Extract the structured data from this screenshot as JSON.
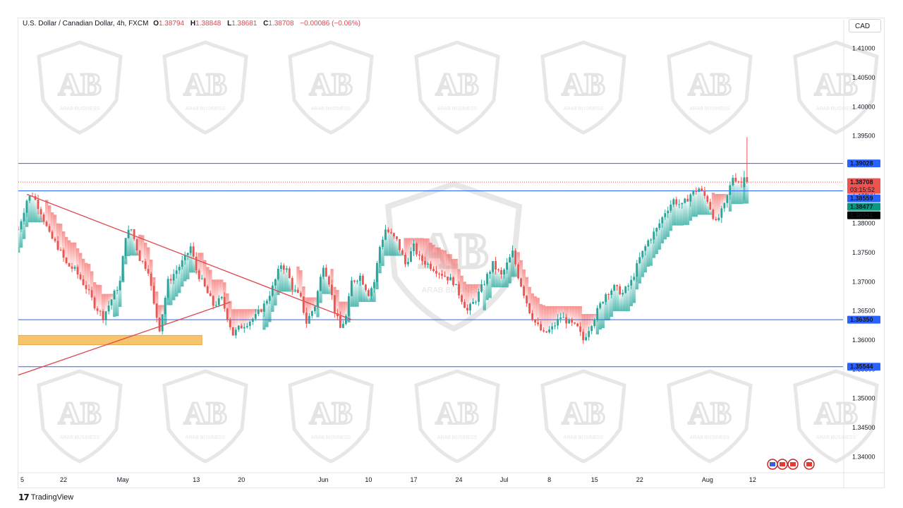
{
  "header": {
    "symbol": "U.S. Dollar / Canadian Dollar, 4h, FXCM",
    "open_label": "O",
    "open": "1.38794",
    "high_label": "H",
    "high": "1.38848",
    "low_label": "L",
    "low": "1.38681",
    "close_label": "C",
    "close": "1.38708",
    "change": "−0.00086 (−0.06%)"
  },
  "currency_button": "CAD",
  "footer": {
    "brand": "TradingView"
  },
  "watermark": {
    "text": "ARAB BUSINESS",
    "monogram": "AB"
  },
  "colors": {
    "bull": "#26a69a",
    "bear": "#ef5350",
    "hline": "#2962ff",
    "trendline": "#e0464e",
    "zone": "#f7c46c",
    "cloud_green": "#26a69a",
    "cloud_red": "#ef5350"
  },
  "chart_data": {
    "type": "candlestick",
    "instrument": "USDCAD",
    "timeframe": "4h",
    "ylim": [
      1.3375,
      1.4125
    ],
    "y_ticks": [
      1.34,
      1.345,
      1.35,
      1.355,
      1.36,
      1.365,
      1.37,
      1.375,
      1.38,
      1.385,
      1.39,
      1.395,
      1.4,
      1.405,
      1.41
    ],
    "y_tick_labels": [
      "1.34000",
      "1.34500",
      "1.35000",
      "1.35500",
      "1.36000",
      "1.36500",
      "1.37000",
      "1.37500",
      "1.38000",
      "1.38500",
      "1.39000",
      "1.39500",
      "1.40000",
      "1.40500",
      "1.41000"
    ],
    "x_ticks": [
      {
        "label": "5",
        "t": 0
      },
      {
        "label": "22",
        "t": 16
      },
      {
        "label": "May",
        "t": 37
      },
      {
        "label": "13",
        "t": 63
      },
      {
        "label": "20",
        "t": 79
      },
      {
        "label": "Jun",
        "t": 108
      },
      {
        "label": "10",
        "t": 124
      },
      {
        "label": "17",
        "t": 140
      },
      {
        "label": "24",
        "t": 156
      },
      {
        "label": "Jul",
        "t": 172
      },
      {
        "label": "8",
        "t": 188
      },
      {
        "label": "15",
        "t": 204
      },
      {
        "label": "22",
        "t": 220
      },
      {
        "label": "Aug",
        "t": 244
      },
      {
        "label": "12",
        "t": 260
      }
    ],
    "x_range": [
      0,
      292
    ],
    "price_anchors": [
      [
        0,
        1.379
      ],
      [
        3,
        1.384
      ],
      [
        5,
        1.385
      ],
      [
        8,
        1.382
      ],
      [
        11,
        1.378
      ],
      [
        14,
        1.376
      ],
      [
        17,
        1.373
      ],
      [
        20,
        1.372
      ],
      [
        24,
        1.369
      ],
      [
        27,
        1.366
      ],
      [
        30,
        1.364
      ],
      [
        33,
        1.367
      ],
      [
        36,
        1.37
      ],
      [
        38,
        1.378
      ],
      [
        40,
        1.379
      ],
      [
        43,
        1.374
      ],
      [
        46,
        1.372
      ],
      [
        48,
        1.366
      ],
      [
        50,
        1.362
      ],
      [
        53,
        1.37
      ],
      [
        56,
        1.372
      ],
      [
        59,
        1.374
      ],
      [
        61,
        1.376
      ],
      [
        63,
        1.372
      ],
      [
        66,
        1.369
      ],
      [
        69,
        1.366
      ],
      [
        72,
        1.367
      ],
      [
        74,
        1.364
      ],
      [
        76,
        1.361
      ],
      [
        78,
        1.362
      ],
      [
        81,
        1.363
      ],
      [
        84,
        1.364
      ],
      [
        87,
        1.366
      ],
      [
        90,
        1.369
      ],
      [
        93,
        1.373
      ],
      [
        95,
        1.372
      ],
      [
        97,
        1.369
      ],
      [
        100,
        1.367
      ],
      [
        102,
        1.363
      ],
      [
        105,
        1.366
      ],
      [
        108,
        1.373
      ],
      [
        110,
        1.37
      ],
      [
        112,
        1.365
      ],
      [
        114,
        1.362
      ],
      [
        116,
        1.364
      ],
      [
        118,
        1.37
      ],
      [
        121,
        1.371
      ],
      [
        124,
        1.368
      ],
      [
        126,
        1.37
      ],
      [
        128,
        1.376
      ],
      [
        130,
        1.379
      ],
      [
        132,
        1.378
      ],
      [
        134,
        1.377
      ],
      [
        137,
        1.373
      ],
      [
        140,
        1.376
      ],
      [
        142,
        1.374
      ],
      [
        145,
        1.373
      ],
      [
        148,
        1.372
      ],
      [
        151,
        1.371
      ],
      [
        154,
        1.37
      ],
      [
        156,
        1.368
      ],
      [
        159,
        1.365
      ],
      [
        162,
        1.367
      ],
      [
        165,
        1.37
      ],
      [
        168,
        1.373
      ],
      [
        171,
        1.371
      ],
      [
        173,
        1.373
      ],
      [
        175,
        1.375
      ],
      [
        177,
        1.371
      ],
      [
        179,
        1.368
      ],
      [
        181,
        1.365
      ],
      [
        183,
        1.363
      ],
      [
        186,
        1.361
      ],
      [
        189,
        1.362
      ],
      [
        192,
        1.364
      ],
      [
        195,
        1.363
      ],
      [
        198,
        1.362
      ],
      [
        200,
        1.36
      ],
      [
        202,
        1.362
      ],
      [
        205,
        1.365
      ],
      [
        208,
        1.368
      ],
      [
        211,
        1.369
      ],
      [
        214,
        1.368
      ],
      [
        217,
        1.37
      ],
      [
        220,
        1.374
      ],
      [
        223,
        1.377
      ],
      [
        226,
        1.379
      ],
      [
        229,
        1.382
      ],
      [
        232,
        1.384
      ],
      [
        235,
        1.383
      ],
      [
        238,
        1.385
      ],
      [
        241,
        1.386
      ],
      [
        244,
        1.384
      ],
      [
        247,
        1.38
      ],
      [
        250,
        1.383
      ],
      [
        253,
        1.388
      ],
      [
        256,
        1.387
      ],
      [
        258,
        1.3871
      ]
    ],
    "last_candle": {
      "open": 1.38794,
      "high": 1.38848,
      "low": 1.38681,
      "close": 1.38708
    },
    "horizontal_levels": [
      1.39028,
      1.38559,
      1.3635,
      1.35544
    ],
    "current_price_line": 1.38708,
    "trendlines": [
      {
        "from": [
          3,
          1.385
        ],
        "to": [
          118,
          1.3635
        ]
      },
      {
        "from": [
          0,
          1.354
        ],
        "to": [
          75,
          1.3665
        ]
      }
    ],
    "support_zone": {
      "t0": 0,
      "t1": 65,
      "y0": 1.3592,
      "y1": 1.3608
    },
    "price_labels": [
      {
        "text": "1.39028",
        "value": 1.39028,
        "bg": "#2962ff",
        "fg": "#ffffff"
      },
      {
        "text": "1.38708",
        "value": 1.38708,
        "bg": "#ef5350",
        "fg": "#ffffff",
        "sub": "03:15:52"
      },
      {
        "text": "1.38559",
        "value": 1.38559,
        "bg": "#2962ff",
        "fg": "#ffffff"
      },
      {
        "text": "1.38477",
        "value": 1.38477,
        "bg": "#089981",
        "fg": "#ffffff"
      },
      {
        "text": "1.38341",
        "value": 1.38341,
        "bg": "#000000",
        "fg": "#ffffff"
      },
      {
        "text": "1.36350",
        "value": 1.3635,
        "bg": "#2962ff",
        "fg": "#ffffff"
      },
      {
        "text": "1.35544",
        "value": 1.35544,
        "bg": "#2962ff",
        "fg": "#ffffff"
      }
    ]
  }
}
